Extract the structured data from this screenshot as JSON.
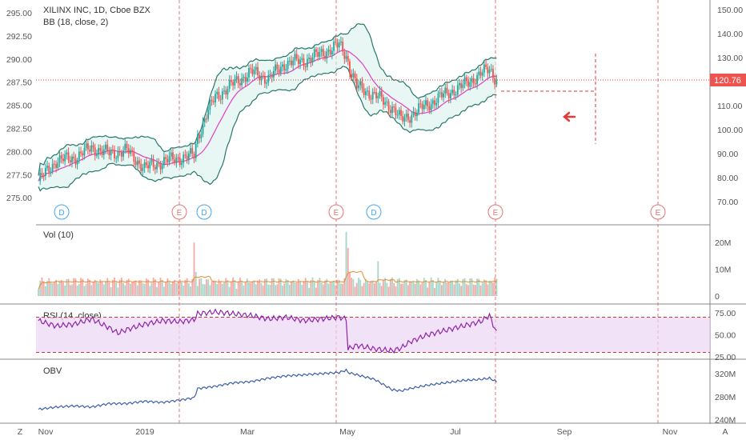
{
  "chart_data": {
    "type": "line",
    "title": "XILINX INC, 1D, Cboe BZX",
    "overlay": "BB (18, close, 2)",
    "left_axis_ticks": [
      "295.00",
      "292.50",
      "290.00",
      "287.50",
      "285.00",
      "282.50",
      "280.00",
      "277.50",
      "275.00"
    ],
    "left_axis_values": [
      295,
      292.5,
      290,
      287.5,
      285,
      282.5,
      280,
      277.5,
      275
    ],
    "right_axis_ticks": [
      "150.00",
      "140.00",
      "130.00",
      "120.00",
      "110.00",
      "100.00",
      "90.00",
      "80.00",
      "70.00"
    ],
    "right_axis_values": [
      150,
      140,
      130,
      120,
      110,
      100,
      90,
      80,
      70
    ],
    "last_price_label": "120.76",
    "x_axis_labels": [
      "Nov",
      "2019",
      "Mar",
      "May",
      "Jul",
      "Sep",
      "Nov"
    ],
    "events": [
      "D",
      "E",
      "D",
      "E",
      "D",
      "E",
      "E"
    ],
    "price_series": [
      [
        0,
        276.8
      ],
      [
        10,
        279.0
      ],
      [
        20,
        279.3
      ],
      [
        30,
        280.4
      ],
      [
        40,
        279.8
      ],
      [
        50,
        280.1
      ],
      [
        60,
        278.2
      ],
      [
        70,
        278.9
      ],
      [
        80,
        279.3
      ],
      [
        88,
        279.6
      ],
      [
        90,
        281.6
      ],
      [
        95,
        284.0
      ],
      [
        100,
        285.9
      ],
      [
        110,
        287.3
      ],
      [
        120,
        288.6
      ],
      [
        130,
        287.9
      ],
      [
        140,
        289.6
      ],
      [
        150,
        289.8
      ],
      [
        160,
        290.6
      ],
      [
        170,
        291.5
      ],
      [
        174,
        290.4
      ],
      [
        176,
        289.0
      ],
      [
        180,
        287.0
      ],
      [
        190,
        286.1
      ],
      [
        200,
        284.8
      ],
      [
        205,
        283.4
      ],
      [
        210,
        283.9
      ],
      [
        220,
        285.1
      ],
      [
        230,
        286.2
      ],
      [
        240,
        287.1
      ],
      [
        250,
        288.4
      ],
      [
        255,
        288.9
      ],
      [
        259,
        287.8
      ]
    ],
    "volume": {
      "label": "Vol (10)",
      "ticks": [
        "20M",
        "10M",
        "0"
      ],
      "tick_values": [
        20,
        10,
        0
      ]
    },
    "rsi": {
      "label": "RSI (14, close)",
      "ticks": [
        "75.00",
        "50.00",
        "25.00"
      ],
      "tick_values": [
        75,
        50,
        25
      ],
      "upper": 70,
      "lower": 30,
      "series": [
        [
          0,
          66
        ],
        [
          10,
          60
        ],
        [
          20,
          62
        ],
        [
          30,
          68
        ],
        [
          40,
          58
        ],
        [
          45,
          52
        ],
        [
          50,
          56
        ],
        [
          60,
          62
        ],
        [
          70,
          66
        ],
        [
          80,
          65
        ],
        [
          88,
          67
        ],
        [
          90,
          74
        ],
        [
          100,
          76
        ],
        [
          110,
          74
        ],
        [
          120,
          72
        ],
        [
          130,
          68
        ],
        [
          140,
          70
        ],
        [
          150,
          66
        ],
        [
          160,
          68
        ],
        [
          170,
          70
        ],
        [
          174,
          68
        ],
        [
          175,
          34
        ],
        [
          180,
          38
        ],
        [
          190,
          34
        ],
        [
          200,
          32
        ],
        [
          205,
          35
        ],
        [
          210,
          42
        ],
        [
          220,
          50
        ],
        [
          230,
          55
        ],
        [
          240,
          60
        ],
        [
          250,
          65
        ],
        [
          255,
          72
        ],
        [
          259,
          52
        ]
      ]
    },
    "obv": {
      "label": "OBV",
      "ticks": [
        "320M",
        "280M",
        "240M"
      ],
      "tick_values": [
        320,
        280,
        240
      ],
      "series": [
        [
          0,
          258
        ],
        [
          10,
          262
        ],
        [
          20,
          264
        ],
        [
          30,
          262
        ],
        [
          40,
          268
        ],
        [
          50,
          268
        ],
        [
          60,
          272
        ],
        [
          70,
          270
        ],
        [
          80,
          274
        ],
        [
          88,
          278
        ],
        [
          90,
          294
        ],
        [
          100,
          298
        ],
        [
          110,
          304
        ],
        [
          120,
          306
        ],
        [
          130,
          312
        ],
        [
          140,
          316
        ],
        [
          150,
          318
        ],
        [
          160,
          320
        ],
        [
          170,
          322
        ],
        [
          174,
          326
        ],
        [
          175,
          322
        ],
        [
          180,
          318
        ],
        [
          190,
          310
        ],
        [
          200,
          292
        ],
        [
          205,
          290
        ],
        [
          210,
          294
        ],
        [
          220,
          300
        ],
        [
          230,
          304
        ],
        [
          240,
          308
        ],
        [
          250,
          310
        ],
        [
          255,
          312
        ],
        [
          259,
          306
        ]
      ]
    }
  },
  "ui": {
    "bottom_left_btn": "Z",
    "bottom_right_btn": "A",
    "forecast_arrow": "arrow-left-icon"
  }
}
